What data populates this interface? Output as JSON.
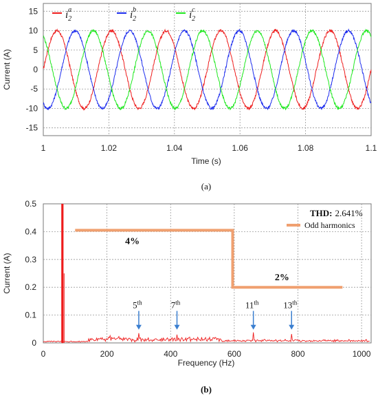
{
  "chart_data": [
    {
      "type": "line",
      "panel": "(a)",
      "xlabel": "Time (s)",
      "ylabel": "Current (A)",
      "xlim": [
        1,
        1.1
      ],
      "ylim": [
        -17,
        17
      ],
      "xticks": [
        "1",
        "1.02",
        "1.04",
        "1.06",
        "1.08",
        "1.1"
      ],
      "yticks": [
        "15",
        "10",
        "5",
        "0",
        "-5",
        "-10",
        "-15"
      ],
      "grid": true,
      "legend_position": "top",
      "series": [
        {
          "name_base": "i",
          "sub": "2",
          "sup": "a",
          "color": "#ee1c1c",
          "amplitude": 10,
          "frequency_hz": 60,
          "phase_deg": 0
        },
        {
          "name_base": "i",
          "sub": "2",
          "sup": "b",
          "color": "#1c2cee",
          "amplitude": 10,
          "frequency_hz": 60,
          "phase_deg": -120
        },
        {
          "name_base": "i",
          "sub": "2",
          "sup": "c",
          "color": "#1ee81e",
          "amplitude": 10,
          "frequency_hz": 60,
          "phase_deg": 120
        }
      ]
    },
    {
      "type": "line",
      "panel": "(b)",
      "xlabel": "Frequency (Hz)",
      "ylabel": "Current (A)",
      "xlim": [
        0,
        1030
      ],
      "ylim": [
        0,
        0.5
      ],
      "xticks": [
        "0",
        "200",
        "400",
        "600",
        "800",
        "1000"
      ],
      "yticks": [
        "0.5",
        "0.4",
        "0.3",
        "0.2",
        "0.1",
        "0"
      ],
      "grid": true,
      "spectrum_color": "#ee1c1c",
      "fundamental": {
        "x": 60,
        "y": 0.5
      },
      "peaks": [
        {
          "x": 300,
          "y": 0.035,
          "label_num": "5",
          "label_sup": "th"
        },
        {
          "x": 420,
          "y": 0.03,
          "label_num": "7",
          "label_sup": "th"
        },
        {
          "x": 660,
          "y": 0.038,
          "label_num": "11",
          "label_sup": "th"
        },
        {
          "x": 780,
          "y": 0.032,
          "label_num": "13",
          "label_sup": "th"
        }
      ],
      "limit_line": {
        "name": "Odd harmonics",
        "color": "#f0a070",
        "points": [
          [
            100,
            0.405
          ],
          [
            595,
            0.405
          ],
          [
            595,
            0.2
          ],
          [
            940,
            0.2
          ]
        ],
        "labels": [
          {
            "text": "4%",
            "x": 280,
            "y": 0.355
          },
          {
            "text": "2%",
            "x": 750,
            "y": 0.225
          }
        ]
      },
      "thd_label": "THD:",
      "thd_value": "2.641%"
    }
  ]
}
